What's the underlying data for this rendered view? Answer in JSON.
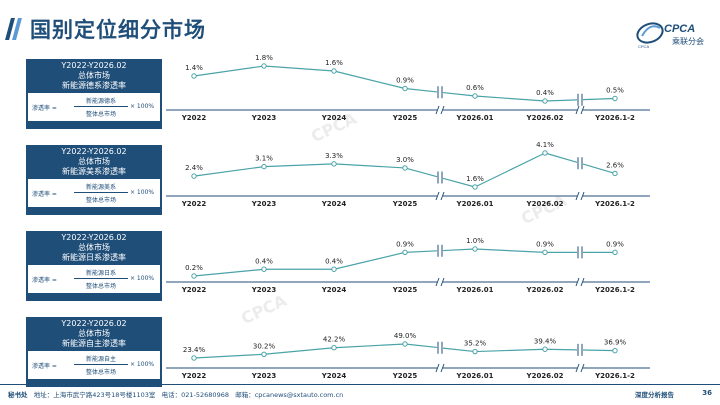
{
  "page": {
    "title": "国别定位细分市场",
    "page_number": "36",
    "report_tag": "深度分析报告",
    "logo_text": "CPCA",
    "logo_sub": "乘联分会",
    "logo_small": "CPCA"
  },
  "footer": {
    "secretariat_label": "秘书处",
    "address_label": "地址：",
    "address": "上海市武宁路423号18号楼1103室",
    "phone_label": "电话：",
    "phone": "021-52680968",
    "email_label": "邮箱：",
    "email": "cpcanews@sxtauto.com.cn"
  },
  "colors": {
    "brand": "#1f4e79",
    "line": "#4aa3a8",
    "axis": "#1f4e79"
  },
  "chart_data": [
    {
      "type": "line",
      "panel_lines": [
        "Y2022-Y2026.02",
        "总体市场",
        "新能源德系渗透率"
      ],
      "formula": {
        "lhs": "渗透率 =",
        "numerator": "新能源德系",
        "denominator": "整体总市场",
        "multiplier": "× 100%"
      },
      "categories": [
        "Y2022",
        "Y2023",
        "Y2024",
        "Y2025",
        "Y2026.01",
        "Y2026.02",
        "Y2026.1-2"
      ],
      "values": [
        1.4,
        1.8,
        1.6,
        0.9,
        0.6,
        0.4,
        0.5
      ],
      "labels": [
        "1.4%",
        "1.8%",
        "1.6%",
        "0.9%",
        "0.6%",
        "0.4%",
        "0.5%"
      ],
      "axis_breaks": [
        "Y2025|Y2026.01",
        "Y2026.02|Y2026.1-2"
      ]
    },
    {
      "type": "line",
      "panel_lines": [
        "Y2022-Y2026.02",
        "总体市场",
        "新能源美系渗透率"
      ],
      "formula": {
        "lhs": "渗透率 =",
        "numerator": "新能源美系",
        "denominator": "整体总市场",
        "multiplier": "× 100%"
      },
      "categories": [
        "Y2022",
        "Y2023",
        "Y2024",
        "Y2025",
        "Y2026.01",
        "Y2026.02",
        "Y2026.1-2"
      ],
      "values": [
        2.4,
        3.1,
        3.3,
        3.0,
        1.6,
        4.1,
        2.6
      ],
      "labels": [
        "2.4%",
        "3.1%",
        "3.3%",
        "3.0%",
        "1.6%",
        "4.1%",
        "2.6%"
      ],
      "axis_breaks": [
        "Y2025|Y2026.01",
        "Y2026.02|Y2026.1-2"
      ]
    },
    {
      "type": "line",
      "panel_lines": [
        "Y2022-Y2026.02",
        "总体市场",
        "新能源日系渗透率"
      ],
      "formula": {
        "lhs": "渗透率 =",
        "numerator": "新能源日系",
        "denominator": "整体总市场",
        "multiplier": "× 100%"
      },
      "categories": [
        "Y2022",
        "Y2023",
        "Y2024",
        "Y2025",
        "Y2026.01",
        "Y2026.02",
        "Y2026.1-2"
      ],
      "values": [
        0.2,
        0.4,
        0.4,
        0.9,
        1.0,
        0.9,
        0.9
      ],
      "labels": [
        "0.2%",
        "0.4%",
        "0.4%",
        "0.9%",
        "1.0%",
        "0.9%",
        "0.9%"
      ],
      "axis_breaks": [
        "Y2025|Y2026.01",
        "Y2026.02|Y2026.1-2"
      ]
    },
    {
      "type": "line",
      "panel_lines": [
        "Y2022-Y2026.02",
        "总体市场",
        "新能源自主渗透率"
      ],
      "formula": {
        "lhs": "渗透率 =",
        "numerator": "新能源自主",
        "denominator": "整体总市场",
        "multiplier": "× 100%"
      },
      "categories": [
        "Y2022",
        "Y2023",
        "Y2024",
        "Y2025",
        "Y2026.01",
        "Y2026.02",
        "Y2026.1-2"
      ],
      "values": [
        23.4,
        30.2,
        42.2,
        49.0,
        35.2,
        39.4,
        36.9
      ],
      "labels": [
        "23.4%",
        "30.2%",
        "42.2%",
        "49.0%",
        "35.2%",
        "39.4%",
        "36.9%"
      ],
      "axis_breaks": [
        "Y2025|Y2026.01",
        "Y2026.02|Y2026.1-2"
      ]
    }
  ]
}
